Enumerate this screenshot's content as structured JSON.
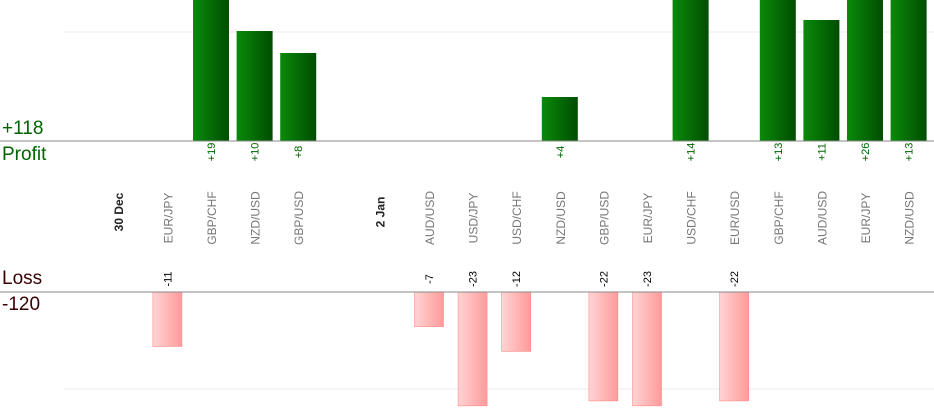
{
  "summary": {
    "profit_total": "+118",
    "profit_label": "Profit",
    "loss_label": "Loss",
    "loss_total": "-120"
  },
  "colors": {
    "profit_text": "#006400",
    "loss_text": "#3a0000",
    "profit_bar_dark": "#004d00",
    "profit_bar_light": "#0a8a0a",
    "loss_bar_light": "#ffd4d4",
    "loss_bar_dark": "#ff9a9a",
    "axis": "#888888",
    "grid": "#eeeeee",
    "pair_label": "#777777",
    "date_label": "#222222"
  },
  "chart_data": {
    "type": "bar",
    "title": "",
    "columns": [
      {
        "label": "30 Dec",
        "kind": "date",
        "value": null
      },
      {
        "label": "EUR/JPY",
        "kind": "trade",
        "value": -11
      },
      {
        "label": "GBP/CHF",
        "kind": "trade",
        "value": 19
      },
      {
        "label": "NZD/USD",
        "kind": "trade",
        "value": 10
      },
      {
        "label": "GBP/USD",
        "kind": "trade",
        "value": 8
      },
      {
        "label": "",
        "kind": "gap",
        "value": null
      },
      {
        "label": "2 Jan",
        "kind": "date",
        "value": null
      },
      {
        "label": "AUD/USD",
        "kind": "trade",
        "value": -7
      },
      {
        "label": "USD/JPY",
        "kind": "trade",
        "value": -23
      },
      {
        "label": "USD/CHF",
        "kind": "trade",
        "value": -12
      },
      {
        "label": "NZD/USD",
        "kind": "trade",
        "value": 4
      },
      {
        "label": "GBP/USD",
        "kind": "trade",
        "value": -22
      },
      {
        "label": "EUR/JPY",
        "kind": "trade",
        "value": -23
      },
      {
        "label": "USD/CHF",
        "kind": "trade",
        "value": 14
      },
      {
        "label": "EUR/USD",
        "kind": "trade",
        "value": -22
      },
      {
        "label": "GBP/CHF",
        "kind": "trade",
        "value": 13
      },
      {
        "label": "AUD/USD",
        "kind": "trade",
        "value": 11
      },
      {
        "label": "EUR/JPY",
        "kind": "trade",
        "value": 26
      },
      {
        "label": "NZD/USD",
        "kind": "trade",
        "value": 13
      }
    ],
    "xlabel": "",
    "ylabel": "",
    "grid": true
  }
}
